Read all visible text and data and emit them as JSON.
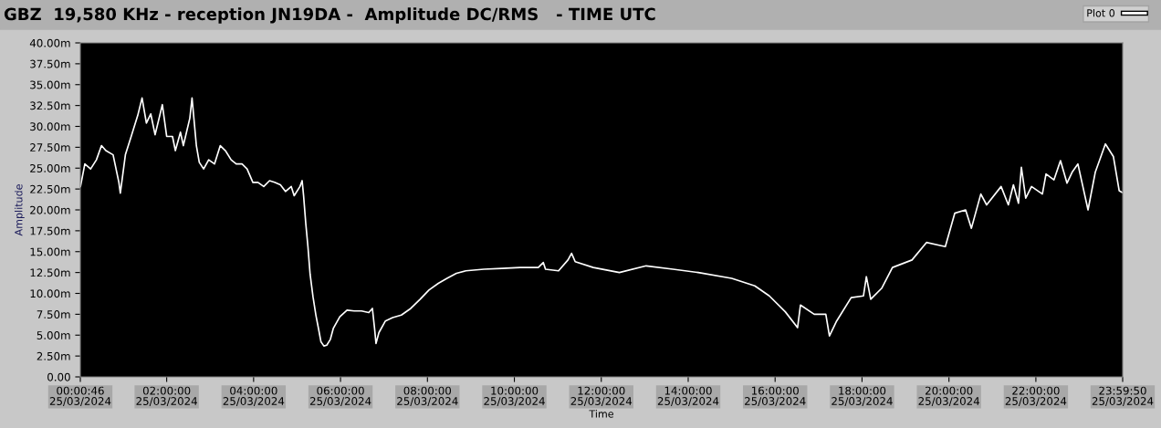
{
  "chart_data": {
    "type": "line",
    "title": "GBZ  19,580 KHz - reception JN19DA -  Amplitude DC/RMS   - TIME UTC",
    "xlabel": "Time",
    "ylabel": "Amplitude",
    "legend": "top right",
    "grid": false,
    "marker": "none",
    "line_style": "solid",
    "xlim": [
      "2024-03-25T00:00:46",
      "2024-03-25T23:59:50"
    ],
    "xticks": [
      {
        "value": "2024-03-25T00:00:46",
        "label": "00:00:46\n25/03/2024"
      },
      {
        "value": "2024-03-25T02:00",
        "label": "02:00:00\n25/03/2024"
      },
      {
        "value": "2024-03-25T04:00",
        "label": "04:00:00\n25/03/2024"
      },
      {
        "value": "2024-03-25T06:00",
        "label": "06:00:00\n25/03/2024"
      },
      {
        "value": "2024-03-25T08:00",
        "label": "08:00:00\n25/03/2024"
      },
      {
        "value": "2024-03-25T10:00",
        "label": "10:00:00\n25/03/2024"
      },
      {
        "value": "2024-03-25T12:00",
        "label": "12:00:00\n25/03/2024"
      },
      {
        "value": "2024-03-25T14:00",
        "label": "14:00:00\n25/03/2024"
      },
      {
        "value": "2024-03-25T16:00",
        "label": "16:00:00\n25/03/2024"
      },
      {
        "value": "2024-03-25T18:00",
        "label": "18:00:00\n25/03/2024"
      },
      {
        "value": "2024-03-25T20:00",
        "label": "20:00:00\n25/03/2024"
      },
      {
        "value": "2024-03-25T22:00",
        "label": "22:00:00\n25/03/2024"
      },
      {
        "value": "2024-03-25T23:59:50",
        "label": "23:59:50\n25/03/2024"
      }
    ],
    "ylim": [
      0,
      40
    ],
    "yticks": [
      {
        "value": 0,
        "label": "0.00"
      },
      {
        "value": 2.5,
        "label": "2.50m"
      },
      {
        "value": 5,
        "label": "5.00m"
      },
      {
        "value": 7.5,
        "label": "7.50m"
      },
      {
        "value": 10,
        "label": "10.00m"
      },
      {
        "value": 12.5,
        "label": "12.50m"
      },
      {
        "value": 15,
        "label": "15.00m"
      },
      {
        "value": 17.5,
        "label": "17.50m"
      },
      {
        "value": 20,
        "label": "20.00m"
      },
      {
        "value": 22.5,
        "label": "22.50m"
      },
      {
        "value": 25,
        "label": "25.00m"
      },
      {
        "value": 27.5,
        "label": "27.50m"
      },
      {
        "value": 30,
        "label": "30.00m"
      },
      {
        "value": 32.5,
        "label": "32.50m"
      },
      {
        "value": 35,
        "label": "35.00m"
      },
      {
        "value": 37.5,
        "label": "37.50m"
      },
      {
        "value": 40,
        "label": "40.00m"
      }
    ],
    "series": [
      {
        "name": "Plot 0",
        "color": "#ffffff",
        "x": [
          "2024-03-25T00:01",
          "2024-03-25T00:07",
          "2024-03-25T00:15",
          "2024-03-25T00:23",
          "2024-03-25T00:30",
          "2024-03-25T00:36",
          "2024-03-25T00:46",
          "2024-03-25T00:54",
          "2024-03-25T00:56",
          "2024-03-25T01:03",
          "2024-03-25T01:11",
          "2024-03-25T01:20",
          "2024-03-25T01:26",
          "2024-03-25T01:32",
          "2024-03-25T01:38",
          "2024-03-25T01:44",
          "2024-03-25T01:54",
          "2024-03-25T02:00",
          "2024-03-25T02:08",
          "2024-03-25T02:12",
          "2024-03-25T02:19",
          "2024-03-25T02:23",
          "2024-03-25T02:32",
          "2024-03-25T02:35",
          "2024-03-25T02:41",
          "2024-03-25T02:45",
          "2024-03-25T02:51",
          "2024-03-25T02:58",
          "2024-03-25T03:06",
          "2024-03-25T03:14",
          "2024-03-25T03:21",
          "2024-03-25T03:29",
          "2024-03-25T03:36",
          "2024-03-25T03:44",
          "2024-03-25T03:51",
          "2024-03-25T03:59",
          "2024-03-25T04:06",
          "2024-03-25T04:14",
          "2024-03-25T04:22",
          "2024-03-25T04:29",
          "2024-03-25T04:37",
          "2024-03-25T04:44",
          "2024-03-25T04:52",
          "2024-03-25T04:56",
          "2024-03-25T05:04",
          "2024-03-25T05:07",
          "2024-03-25T05:09",
          "2024-03-25T05:12",
          "2024-03-25T05:15",
          "2024-03-25T05:18",
          "2024-03-25T05:22",
          "2024-03-25T05:26",
          "2024-03-25T05:30",
          "2024-03-25T05:33",
          "2024-03-25T05:37",
          "2024-03-25T05:41",
          "2024-03-25T05:46",
          "2024-03-25T05:50",
          "2024-03-25T05:59",
          "2024-03-25T06:09",
          "2024-03-25T06:19",
          "2024-03-25T06:29",
          "2024-03-25T06:39",
          "2024-03-25T06:44",
          "2024-03-25T06:47",
          "2024-03-25T06:49",
          "2024-03-25T06:53",
          "2024-03-25T07:02",
          "2024-03-25T07:12",
          "2024-03-25T07:24",
          "2024-03-25T07:37",
          "2024-03-25T07:50",
          "2024-03-25T08:02",
          "2024-03-25T08:15",
          "2024-03-25T08:27",
          "2024-03-25T08:40",
          "2024-03-25T08:53",
          "2024-03-25T09:18",
          "2024-03-25T09:43",
          "2024-03-25T10:08",
          "2024-03-25T10:33",
          "2024-03-25T10:40",
          "2024-03-25T10:43",
          "2024-03-25T11:01",
          "2024-03-25T11:14",
          "2024-03-25T11:19",
          "2024-03-25T11:24",
          "2024-03-25T11:49",
          "2024-03-25T12:25",
          "2024-03-25T13:02",
          "2024-03-25T13:39",
          "2024-03-25T14:14",
          "2024-03-25T15:00",
          "2024-03-25T15:32",
          "2024-03-25T15:52",
          "2024-03-25T16:14",
          "2024-03-25T16:31",
          "2024-03-25T16:35",
          "2024-03-25T16:54",
          "2024-03-25T17:10",
          "2024-03-25T17:15",
          "2024-03-25T17:25",
          "2024-03-25T17:45",
          "2024-03-25T18:02",
          "2024-03-25T18:06",
          "2024-03-25T18:12",
          "2024-03-25T18:27",
          "2024-03-25T18:42",
          "2024-03-25T19:09",
          "2024-03-25T19:29",
          "2024-03-25T19:55",
          "2024-03-25T20:08",
          "2024-03-25T20:23",
          "2024-03-25T20:31",
          "2024-03-25T20:44",
          "2024-03-25T20:52",
          "2024-03-25T21:12",
          "2024-03-25T21:22",
          "2024-03-25T21:29",
          "2024-03-25T21:36",
          "2024-03-25T21:40",
          "2024-03-25T21:46",
          "2024-03-25T21:54",
          "2024-03-25T22:09",
          "2024-03-25T22:14",
          "2024-03-25T22:25",
          "2024-03-25T22:34",
          "2024-03-25T22:43",
          "2024-03-25T22:50",
          "2024-03-25T22:58",
          "2024-03-25T23:12",
          "2024-03-25T23:22",
          "2024-03-25T23:36",
          "2024-03-25T23:47",
          "2024-03-25T23:55",
          "2024-03-25T23:59"
        ],
        "values": [
          22.8,
          25.5,
          24.9,
          26.0,
          27.7,
          27.1,
          26.6,
          23.3,
          22.0,
          26.6,
          28.8,
          31.3,
          33.4,
          30.4,
          31.5,
          29.0,
          32.6,
          28.8,
          28.8,
          27.1,
          29.3,
          27.7,
          31.0,
          33.4,
          27.7,
          25.7,
          24.9,
          26.0,
          25.5,
          27.7,
          27.1,
          26.0,
          25.5,
          25.5,
          24.9,
          23.3,
          23.3,
          22.8,
          23.5,
          23.3,
          23.0,
          22.2,
          22.8,
          21.7,
          22.8,
          23.5,
          21.7,
          18.4,
          15.6,
          12.3,
          9.6,
          7.4,
          5.6,
          4.2,
          3.7,
          3.8,
          4.5,
          5.8,
          7.2,
          8.0,
          7.9,
          7.9,
          7.7,
          8.2,
          5.8,
          4.0,
          5.3,
          6.7,
          7.1,
          7.4,
          8.2,
          9.3,
          10.4,
          11.2,
          11.8,
          12.4,
          12.7,
          12.9,
          13.0,
          13.1,
          13.1,
          13.7,
          12.9,
          12.7,
          14.0,
          14.8,
          13.8,
          13.1,
          12.5,
          13.3,
          12.9,
          12.5,
          11.8,
          10.9,
          9.7,
          7.8,
          5.9,
          8.6,
          7.5,
          7.5,
          4.9,
          6.7,
          9.5,
          9.7,
          12.0,
          9.3,
          10.6,
          13.1,
          14.0,
          16.1,
          15.6,
          19.6,
          20.0,
          17.8,
          21.9,
          20.6,
          22.8,
          20.6,
          23.0,
          20.8,
          25.1,
          21.4,
          22.8,
          21.9,
          24.3,
          23.6,
          25.9,
          23.2,
          24.5,
          25.5,
          20.0,
          24.5,
          27.9,
          26.4,
          22.3,
          22.1
        ]
      }
    ]
  }
}
